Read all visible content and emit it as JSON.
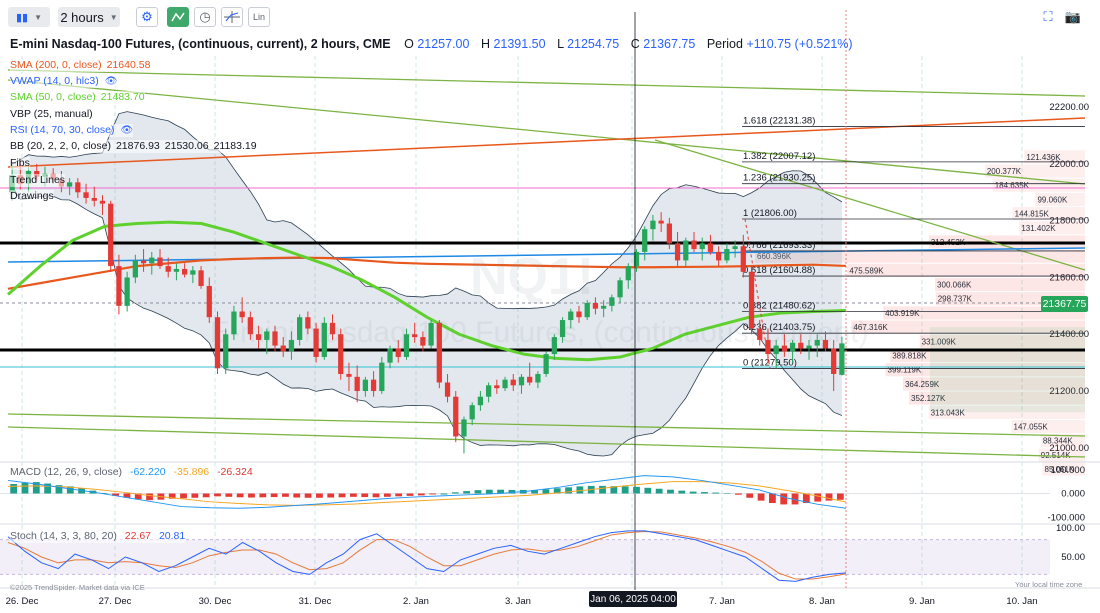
{
  "toolbar": {
    "chart_type_icon": "candles-icon",
    "interval_label": "2 hours",
    "buttons": [
      "indicator-settings-icon",
      "trend-icon",
      "clock-icon",
      "crosshair-icon",
      "lin-icon"
    ],
    "lin_label": "Lin",
    "right_icons": [
      "fullscreen-icon",
      "camera-icon"
    ]
  },
  "header": {
    "title": "E-mini Nasdaq-100 Futures, (continuous, current), 2 hours, CME",
    "o_label": "O",
    "o_value": "21257.00",
    "h_label": "H",
    "h_value": "21391.50",
    "l_label": "L",
    "l_value": "21254.75",
    "c_label": "C",
    "c_value": "21367.75",
    "period_label": "Period",
    "period_value": "+110.75 (+0.521%)"
  },
  "indicators": [
    {
      "name": "SMA (200, 0, close)",
      "values": [
        "21640.58"
      ],
      "color": "#e8571c"
    },
    {
      "name": "VWAP (14, 0, hlc3)",
      "values": [],
      "color": "#2962ff",
      "icon": "eye-icon"
    },
    {
      "name": "SMA (50, 0, close)",
      "values": [
        "21483.70"
      ],
      "color": "#5fd12e"
    },
    {
      "name": "VBP (25, manual)",
      "values": [],
      "color": "#131722"
    },
    {
      "name": "RSI (14, 70, 30, close)",
      "values": [],
      "color": "#2962ff",
      "icon": "eye-icon"
    },
    {
      "name": "BB (20, 2, 2, 0, close)",
      "values": [
        "21876.93",
        "21530.06",
        "21183.19"
      ],
      "color": "#131722"
    },
    {
      "name": "Fibs",
      "values": [],
      "color": "#131722"
    },
    {
      "name": "Trend Lines",
      "values": [],
      "color": "#131722"
    },
    {
      "name": "Drawings",
      "values": [],
      "color": "#131722"
    }
  ],
  "current_price": "21367.75",
  "crosshair_date": "Jan 06, 2025 04:00",
  "watermark_symbol": "NQ1!",
  "watermark_name": "E-mini Nasdaq-100 Futures, (continuous, current)",
  "fib_levels": [
    {
      "label": "1.618 (22131.38)",
      "price": 22131.38
    },
    {
      "label": "1.382 (22007.12)",
      "price": 22007.12
    },
    {
      "label": "1.236 (21930.25)",
      "price": 21930.25
    },
    {
      "label": "1 (21806.00)",
      "price": 21806.0
    },
    {
      "label": "0.786 (21693.33)",
      "price": 21693.33
    },
    {
      "label": "0.618 (21604.88)",
      "price": 21604.88
    },
    {
      "label": "0.382 (21480.62)",
      "price": 21480.62
    },
    {
      "label": "0.236 (21403.75)",
      "price": 21403.75
    },
    {
      "label": "0 (21279.50)",
      "price": 21279.5
    }
  ],
  "volume_profile": [
    {
      "label": "121.436K",
      "price": 22025,
      "vol": 121.436
    },
    {
      "label": "200.377K",
      "price": 21975,
      "vol": 200.377
    },
    {
      "label": "184.635K",
      "price": 21925,
      "vol": 184.635
    },
    {
      "label": "99.060K",
      "price": 21875,
      "vol": 99.06
    },
    {
      "label": "144.815K",
      "price": 21825,
      "vol": 144.815
    },
    {
      "label": "131.402K",
      "price": 21775,
      "vol": 131.402
    },
    {
      "label": "312.452K",
      "price": 21725,
      "vol": 312.452
    },
    {
      "label": "660.396K",
      "price": 21675,
      "vol": 660.396
    },
    {
      "label": "475.589K",
      "price": 21625,
      "vol": 475.589
    },
    {
      "label": "300.066K",
      "price": 21575,
      "vol": 300.066
    },
    {
      "label": "298.737K",
      "price": 21525,
      "vol": 298.737
    },
    {
      "label": "403.919K",
      "price": 21475,
      "vol": 403.919
    },
    {
      "label": "467.316K",
      "price": 21425,
      "vol": 467.316
    },
    {
      "label": "331.009K",
      "price": 21375,
      "vol": 331.009
    },
    {
      "label": "389.818K",
      "price": 21325,
      "vol": 389.818
    },
    {
      "label": "399.119K",
      "price": 21275,
      "vol": 399.119
    },
    {
      "label": "364.259K",
      "price": 21225,
      "vol": 364.259
    },
    {
      "label": "352.127K",
      "price": 21175,
      "vol": 352.127
    },
    {
      "label": "313.043K",
      "price": 21125,
      "vol": 313.043
    },
    {
      "label": "147.055K",
      "price": 21075,
      "vol": 147.055
    },
    {
      "label": "88.344K",
      "price": 21025,
      "vol": 88.344
    },
    {
      "label": "92.514K",
      "price": 20975,
      "vol": 92.514
    },
    {
      "label": "85.051K",
      "price": 20925,
      "vol": 85.051
    }
  ],
  "macd_legend": {
    "name": "MACD (12, 26, 9, close)",
    "v1": "-62.220",
    "v2": "-35.896",
    "v3": "-26.324"
  },
  "stoch_legend": {
    "name": "Stoch (14, 3, 3, 80, 20)",
    "v1": "22.67",
    "v2": "20.81"
  },
  "copyright": "©2025 TrendSpider. Market data via ICE",
  "timezone_label": "Your local time zone",
  "chart_data": {
    "type": "candlestick",
    "title": "E-mini Nasdaq-100 Futures, (continuous, current), 2 hours, CME",
    "x_labels": [
      "26. Dec",
      "27. Dec",
      "30. Dec",
      "31. Dec",
      "2. Jan",
      "3. Jan",
      "6. Jan",
      "7. Jan",
      "8. Jan",
      "9. Jan",
      "10. Jan"
    ],
    "y_ticks": [
      "22200.00",
      "22000.00",
      "21800.00",
      "21600.00",
      "21400.00",
      "21200.00",
      "21000.00"
    ],
    "ylim": [
      20950,
      22380
    ],
    "candles": [
      {
        "o": 21900,
        "h": 22000,
        "l": 21870,
        "c": 21960
      },
      {
        "o": 21960,
        "h": 22010,
        "l": 21910,
        "c": 21930
      },
      {
        "o": 21930,
        "h": 21990,
        "l": 21900,
        "c": 21975
      },
      {
        "o": 21975,
        "h": 22000,
        "l": 21940,
        "c": 21955
      },
      {
        "o": 21955,
        "h": 21990,
        "l": 21920,
        "c": 21965
      },
      {
        "o": 21965,
        "h": 21985,
        "l": 21930,
        "c": 21945
      },
      {
        "o": 21945,
        "h": 21975,
        "l": 21900,
        "c": 21920
      },
      {
        "o": 21920,
        "h": 21950,
        "l": 21890,
        "c": 21935
      },
      {
        "o": 21935,
        "h": 21950,
        "l": 21880,
        "c": 21900
      },
      {
        "o": 21900,
        "h": 21930,
        "l": 21860,
        "c": 21880
      },
      {
        "o": 21880,
        "h": 21920,
        "l": 21850,
        "c": 21870
      },
      {
        "o": 21870,
        "h": 21890,
        "l": 21820,
        "c": 21860
      },
      {
        "o": 21860,
        "h": 21870,
        "l": 21620,
        "c": 21640
      },
      {
        "o": 21640,
        "h": 21680,
        "l": 21470,
        "c": 21500
      },
      {
        "o": 21500,
        "h": 21620,
        "l": 21480,
        "c": 21600
      },
      {
        "o": 21600,
        "h": 21680,
        "l": 21580,
        "c": 21660
      },
      {
        "o": 21660,
        "h": 21700,
        "l": 21620,
        "c": 21650
      },
      {
        "o": 21650,
        "h": 21690,
        "l": 21610,
        "c": 21670
      },
      {
        "o": 21670,
        "h": 21700,
        "l": 21630,
        "c": 21640
      },
      {
        "o": 21640,
        "h": 21670,
        "l": 21600,
        "c": 21620
      },
      {
        "o": 21620,
        "h": 21650,
        "l": 21590,
        "c": 21630
      },
      {
        "o": 21630,
        "h": 21650,
        "l": 21600,
        "c": 21610
      },
      {
        "o": 21610,
        "h": 21640,
        "l": 21580,
        "c": 21625
      },
      {
        "o": 21625,
        "h": 21640,
        "l": 21560,
        "c": 21570
      },
      {
        "o": 21570,
        "h": 21600,
        "l": 21440,
        "c": 21460
      },
      {
        "o": 21460,
        "h": 21480,
        "l": 21260,
        "c": 21280
      },
      {
        "o": 21280,
        "h": 21420,
        "l": 21260,
        "c": 21400
      },
      {
        "o": 21400,
        "h": 21500,
        "l": 21380,
        "c": 21480
      },
      {
        "o": 21480,
        "h": 21530,
        "l": 21440,
        "c": 21460
      },
      {
        "o": 21460,
        "h": 21480,
        "l": 21380,
        "c": 21400
      },
      {
        "o": 21400,
        "h": 21430,
        "l": 21350,
        "c": 21380
      },
      {
        "o": 21380,
        "h": 21420,
        "l": 21330,
        "c": 21410
      },
      {
        "o": 21410,
        "h": 21430,
        "l": 21340,
        "c": 21360
      },
      {
        "o": 21360,
        "h": 21390,
        "l": 21320,
        "c": 21340
      },
      {
        "o": 21340,
        "h": 21410,
        "l": 21310,
        "c": 21380
      },
      {
        "o": 21380,
        "h": 21470,
        "l": 21360,
        "c": 21460
      },
      {
        "o": 21460,
        "h": 21480,
        "l": 21400,
        "c": 21420
      },
      {
        "o": 21420,
        "h": 21440,
        "l": 21300,
        "c": 21320
      },
      {
        "o": 21320,
        "h": 21460,
        "l": 21310,
        "c": 21440
      },
      {
        "o": 21440,
        "h": 21470,
        "l": 21380,
        "c": 21400
      },
      {
        "o": 21400,
        "h": 21420,
        "l": 21240,
        "c": 21260
      },
      {
        "o": 21260,
        "h": 21300,
        "l": 21200,
        "c": 21250
      },
      {
        "o": 21250,
        "h": 21290,
        "l": 21160,
        "c": 21200
      },
      {
        "o": 21200,
        "h": 21250,
        "l": 21180,
        "c": 21240
      },
      {
        "o": 21240,
        "h": 21270,
        "l": 21180,
        "c": 21200
      },
      {
        "o": 21200,
        "h": 21320,
        "l": 21190,
        "c": 21300
      },
      {
        "o": 21300,
        "h": 21360,
        "l": 21280,
        "c": 21350
      },
      {
        "o": 21350,
        "h": 21380,
        "l": 21300,
        "c": 21320
      },
      {
        "o": 21320,
        "h": 21420,
        "l": 21310,
        "c": 21400
      },
      {
        "o": 21400,
        "h": 21440,
        "l": 21370,
        "c": 21390
      },
      {
        "o": 21390,
        "h": 21410,
        "l": 21340,
        "c": 21360
      },
      {
        "o": 21360,
        "h": 21450,
        "l": 21350,
        "c": 21440
      },
      {
        "o": 21440,
        "h": 21450,
        "l": 21210,
        "c": 21230
      },
      {
        "o": 21230,
        "h": 21260,
        "l": 21160,
        "c": 21180
      },
      {
        "o": 21180,
        "h": 21200,
        "l": 21020,
        "c": 21040
      },
      {
        "o": 21040,
        "h": 21110,
        "l": 20980,
        "c": 21100
      },
      {
        "o": 21100,
        "h": 21160,
        "l": 21080,
        "c": 21150
      },
      {
        "o": 21150,
        "h": 21200,
        "l": 21130,
        "c": 21180
      },
      {
        "o": 21180,
        "h": 21230,
        "l": 21160,
        "c": 21220
      },
      {
        "o": 21220,
        "h": 21240,
        "l": 21190,
        "c": 21210
      },
      {
        "o": 21210,
        "h": 21250,
        "l": 21200,
        "c": 21240
      },
      {
        "o": 21240,
        "h": 21260,
        "l": 21200,
        "c": 21220
      },
      {
        "o": 21220,
        "h": 21260,
        "l": 21190,
        "c": 21250
      },
      {
        "o": 21250,
        "h": 21300,
        "l": 21220,
        "c": 21230
      },
      {
        "o": 21230,
        "h": 21270,
        "l": 21210,
        "c": 21260
      },
      {
        "o": 21260,
        "h": 21340,
        "l": 21250,
        "c": 21330
      },
      {
        "o": 21330,
        "h": 21400,
        "l": 21310,
        "c": 21390
      },
      {
        "o": 21390,
        "h": 21460,
        "l": 21370,
        "c": 21450
      },
      {
        "o": 21450,
        "h": 21490,
        "l": 21420,
        "c": 21480
      },
      {
        "o": 21480,
        "h": 21500,
        "l": 21440,
        "c": 21460
      },
      {
        "o": 21460,
        "h": 21520,
        "l": 21450,
        "c": 21510
      },
      {
        "o": 21510,
        "h": 21530,
        "l": 21470,
        "c": 21490
      },
      {
        "o": 21490,
        "h": 21520,
        "l": 21460,
        "c": 21500
      },
      {
        "o": 21500,
        "h": 21540,
        "l": 21480,
        "c": 21530
      },
      {
        "o": 21530,
        "h": 21600,
        "l": 21510,
        "c": 21590
      },
      {
        "o": 21590,
        "h": 21650,
        "l": 21560,
        "c": 21640
      },
      {
        "o": 21640,
        "h": 21700,
        "l": 21620,
        "c": 21690
      },
      {
        "o": 21690,
        "h": 21780,
        "l": 21660,
        "c": 21770
      },
      {
        "o": 21770,
        "h": 21820,
        "l": 21730,
        "c": 21800
      },
      {
        "o": 21800,
        "h": 21830,
        "l": 21760,
        "c": 21790
      },
      {
        "o": 21790,
        "h": 21810,
        "l": 21700,
        "c": 21720
      },
      {
        "o": 21720,
        "h": 21760,
        "l": 21640,
        "c": 21660
      },
      {
        "o": 21660,
        "h": 21740,
        "l": 21640,
        "c": 21730
      },
      {
        "o": 21730,
        "h": 21760,
        "l": 21690,
        "c": 21700
      },
      {
        "o": 21700,
        "h": 21740,
        "l": 21660,
        "c": 21720
      },
      {
        "o": 21720,
        "h": 21750,
        "l": 21680,
        "c": 21690
      },
      {
        "o": 21690,
        "h": 21710,
        "l": 21640,
        "c": 21660
      },
      {
        "o": 21660,
        "h": 21720,
        "l": 21650,
        "c": 21700
      },
      {
        "o": 21700,
        "h": 21730,
        "l": 21670,
        "c": 21710
      },
      {
        "o": 21710,
        "h": 21750,
        "l": 21600,
        "c": 21620
      },
      {
        "o": 21620,
        "h": 21640,
        "l": 21400,
        "c": 21420
      },
      {
        "o": 21420,
        "h": 21450,
        "l": 21360,
        "c": 21380
      },
      {
        "o": 21380,
        "h": 21420,
        "l": 21300,
        "c": 21330
      },
      {
        "o": 21330,
        "h": 21380,
        "l": 21280,
        "c": 21360
      },
      {
        "o": 21360,
        "h": 21400,
        "l": 21320,
        "c": 21340
      },
      {
        "o": 21340,
        "h": 21380,
        "l": 21300,
        "c": 21370
      },
      {
        "o": 21370,
        "h": 21400,
        "l": 21330,
        "c": 21350
      },
      {
        "o": 21350,
        "h": 21380,
        "l": 21310,
        "c": 21360
      },
      {
        "o": 21360,
        "h": 21400,
        "l": 21320,
        "c": 21380
      },
      {
        "o": 21380,
        "h": 21410,
        "l": 21340,
        "c": 21350
      },
      {
        "o": 21350,
        "h": 21380,
        "l": 21200,
        "c": 21260
      },
      {
        "o": 21257,
        "h": 21391.5,
        "l": 21254.75,
        "c": 21367.75
      }
    ],
    "sma200": [
      21560,
      21580,
      21600,
      21620,
      21640,
      21650,
      21660,
      21665,
      21668,
      21670,
      21668,
      21660,
      21652,
      21648,
      21646,
      21644,
      21642,
      21640,
      21638,
      21636,
      21636,
      21637,
      21638,
      21640,
      21643,
      21645,
      21640.58
    ],
    "sma50": [
      21540,
      21640,
      21730,
      21780,
      21790,
      21795,
      21790,
      21760,
      21720,
      21680,
      21640,
      21590,
      21530,
      21460,
      21400,
      21360,
      21330,
      21315,
      21310,
      21320,
      21350,
      21400,
      21430,
      21460,
      21475,
      21480,
      21483.7
    ],
    "vwap": {
      "start": 21480,
      "end": 21530
    },
    "macd": {
      "hist": [
        40,
        45,
        48,
        42,
        35,
        30,
        22,
        12,
        2,
        -10,
        -18,
        -24,
        -28,
        -26,
        -22,
        -20,
        -18,
        -16,
        -12,
        -14,
        -16,
        -17,
        -16,
        -15,
        -14,
        -17,
        -18,
        -18,
        -17,
        -16,
        -14,
        -15,
        -16,
        -14,
        -12,
        -10,
        -8,
        -4,
        0,
        5,
        10,
        14,
        16,
        16,
        15,
        15,
        15,
        18,
        22,
        26,
        30,
        32,
        32,
        31,
        30,
        28,
        24,
        20,
        16,
        12,
        8,
        6,
        4,
        2,
        -5,
        -18,
        -30,
        -40,
        -46,
        -46,
        -40,
        -34,
        -30,
        -26.324
      ],
      "macd_line": [
        55,
        40,
        22,
        5,
        -15,
        -35,
        -55,
        -60,
        -62,
        -58,
        -50,
        -42,
        -32,
        -22,
        -15,
        -10,
        -5,
        0,
        10,
        25,
        45,
        60,
        75,
        70,
        55,
        35,
        15,
        -20,
        -45,
        -62.22
      ],
      "signal_line": [
        30,
        32,
        28,
        18,
        5,
        -10,
        -22,
        -35,
        -42,
        -48,
        -50,
        -48,
        -44,
        -38,
        -32,
        -26,
        -20,
        -14,
        -8,
        2,
        14,
        28,
        40,
        50,
        50,
        44,
        32,
        12,
        -10,
        -35.896
      ],
      "ylim": [
        -120,
        120
      ],
      "ticks": [
        "100.000",
        "0.000",
        "-100.000"
      ]
    },
    "stoch": {
      "k": [
        85,
        60,
        40,
        30,
        55,
        45,
        30,
        50,
        40,
        25,
        35,
        50,
        65,
        55,
        75,
        60,
        40,
        25,
        20,
        40,
        55,
        80,
        90,
        70,
        50,
        30,
        25,
        45,
        55,
        65,
        70,
        60,
        55,
        65,
        75,
        85,
        92,
        95,
        95,
        90,
        85,
        80,
        70,
        60,
        50,
        30,
        10,
        8,
        15,
        20,
        22.67
      ],
      "d": [
        75,
        65,
        50,
        40,
        45,
        45,
        40,
        42,
        40,
        35,
        32,
        40,
        52,
        58,
        62,
        62,
        55,
        40,
        28,
        30,
        40,
        62,
        80,
        80,
        68,
        50,
        35,
        35,
        45,
        55,
        62,
        64,
        60,
        62,
        68,
        78,
        88,
        92,
        94,
        93,
        88,
        83,
        76,
        68,
        58,
        42,
        22,
        12,
        12,
        16,
        20.81
      ],
      "ylim": [
        0,
        100
      ],
      "ticks": [
        "100.00",
        "50.00"
      ]
    },
    "grid": true,
    "legend_placement": "top-left"
  }
}
